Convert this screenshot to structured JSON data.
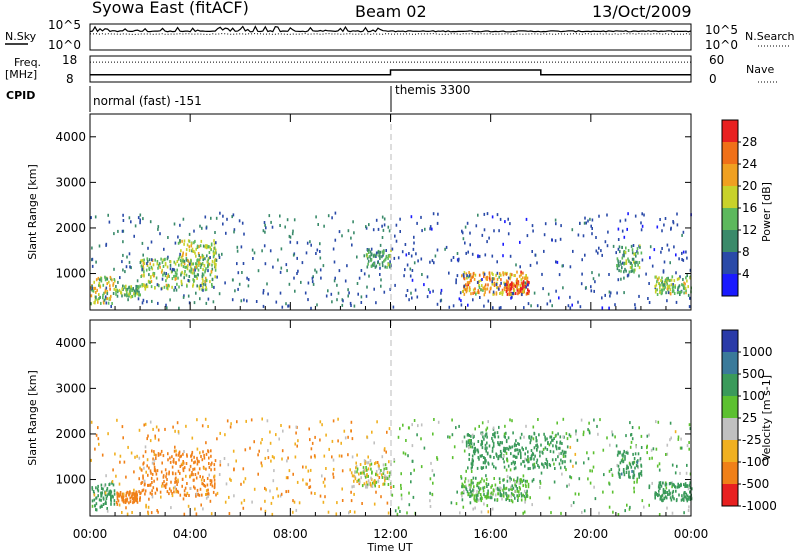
{
  "header": {
    "station": "Syowa East (fitACF)",
    "beam": "Beam 02",
    "date": "13/Oct/2009"
  },
  "noise_panel": {
    "left_label": "N.Sky",
    "right_label": "N.Search",
    "left_ticks": [
      "10^5",
      "10^0"
    ],
    "right_ticks": [
      "10^5",
      "10^0"
    ]
  },
  "freq_panel": {
    "left_label_1": "Freq.",
    "left_label_2": "[MHz]",
    "left_ticks": [
      "18",
      "8"
    ],
    "right_label": "Nave",
    "right_ticks": [
      "60",
      "0"
    ]
  },
  "cpid": {
    "label": "CPID",
    "segments": [
      {
        "name": "normal (fast) -151",
        "start_hour": 0
      },
      {
        "name": "themis 3300",
        "start_hour": 12
      }
    ]
  },
  "power_panel": {
    "ylabel": "Slant Range [km]",
    "yticks": [
      "1000",
      "2000",
      "3000",
      "4000"
    ],
    "colorbar_label": "Power [dB]",
    "colorbar_ticks": [
      "4",
      "8",
      "12",
      "16",
      "20",
      "24",
      "28"
    ],
    "colors": [
      "#1a1aff",
      "#2a4aa8",
      "#3a8a6a",
      "#5cb85c",
      "#c8d22a",
      "#f0a020",
      "#f07018",
      "#e82020"
    ]
  },
  "velocity_panel": {
    "ylabel": "Slant Range [km]",
    "yticks": [
      "1000",
      "2000",
      "3000",
      "4000"
    ],
    "colorbar_label": "Velocity [m s-1]",
    "colorbar_ticks": [
      "1000",
      "500",
      "100",
      "25",
      "-25",
      "-100",
      "-500",
      "-1000"
    ],
    "colors": [
      "#2a3aa8",
      "#3a7a9a",
      "#3a9a5a",
      "#5cc030",
      "#c0c0c0",
      "#f0b020",
      "#f08018",
      "#e82020"
    ]
  },
  "xaxis": {
    "label": "Time UT",
    "ticks": [
      "00:00",
      "04:00",
      "08:00",
      "12:00",
      "16:00",
      "20:00",
      "00:00"
    ]
  },
  "chart_data": {
    "type": "heatmap",
    "x_range_hours": [
      0,
      24
    ],
    "y_range_km": [
      200,
      4500
    ],
    "cpid_change_hour": 12,
    "noise": {
      "sky_level": 3.5,
      "search_level": 3.0
    },
    "frequency_segments": [
      {
        "start": 0,
        "end": 12,
        "mhz": 10.8
      },
      {
        "start": 12,
        "end": 18,
        "mhz": 12.6
      },
      {
        "start": 18,
        "end": 24,
        "mhz": 10.8
      }
    ],
    "nave_level": 46,
    "power_regions": [
      {
        "t0": 0.0,
        "t1": 1.0,
        "r0": 300,
        "r1": 900,
        "db": 18
      },
      {
        "t0": 1.0,
        "t1": 2.0,
        "r0": 450,
        "r1": 700,
        "db": 14
      },
      {
        "t0": 2.0,
        "t1": 5.0,
        "r0": 600,
        "r1": 1300,
        "db": 16
      },
      {
        "t0": 3.5,
        "t1": 5.0,
        "r0": 1100,
        "r1": 1700,
        "db": 16
      },
      {
        "t0": 0.0,
        "t1": 12.0,
        "r0": 200,
        "r1": 2300,
        "db": 8
      },
      {
        "t0": 11.0,
        "t1": 12.0,
        "r0": 1100,
        "r1": 1500,
        "db": 12
      },
      {
        "t0": 14.8,
        "t1": 17.5,
        "r0": 500,
        "r1": 1000,
        "db": 22
      },
      {
        "t0": 16.5,
        "t1": 17.5,
        "r0": 500,
        "r1": 800,
        "db": 27
      },
      {
        "t0": 12.0,
        "t1": 24.0,
        "r0": 200,
        "r1": 2300,
        "db": 6
      },
      {
        "t0": 21.0,
        "t1": 22.0,
        "r0": 1000,
        "r1": 1600,
        "db": 13
      },
      {
        "t0": 22.5,
        "t1": 24.0,
        "r0": 500,
        "r1": 900,
        "db": 16
      }
    ],
    "velocity_regions": [
      {
        "t0": 0.0,
        "t1": 1.0,
        "r0": 300,
        "r1": 900,
        "v": 200
      },
      {
        "t0": 1.0,
        "t1": 2.0,
        "r0": 450,
        "r1": 700,
        "v": -300
      },
      {
        "t0": 2.0,
        "t1": 5.0,
        "r0": 600,
        "r1": 1600,
        "v": -300
      },
      {
        "t0": 0.0,
        "t1": 12.0,
        "r0": 200,
        "r1": 2300,
        "v": -80
      },
      {
        "t0": 10.5,
        "t1": 12.0,
        "r0": 800,
        "r1": 1400,
        "v": 0
      },
      {
        "t0": 14.8,
        "t1": 17.5,
        "r0": 500,
        "r1": 1000,
        "v": 80
      },
      {
        "t0": 15.0,
        "t1": 19.0,
        "r0": 1200,
        "r1": 2000,
        "v": 300
      },
      {
        "t0": 12.0,
        "t1": 24.0,
        "r0": 200,
        "r1": 2300,
        "v": 60
      },
      {
        "t0": 21.0,
        "t1": 22.0,
        "r0": 1000,
        "r1": 1600,
        "v": 400
      },
      {
        "t0": 22.5,
        "t1": 24.0,
        "r0": 500,
        "r1": 900,
        "v": 300
      }
    ]
  }
}
